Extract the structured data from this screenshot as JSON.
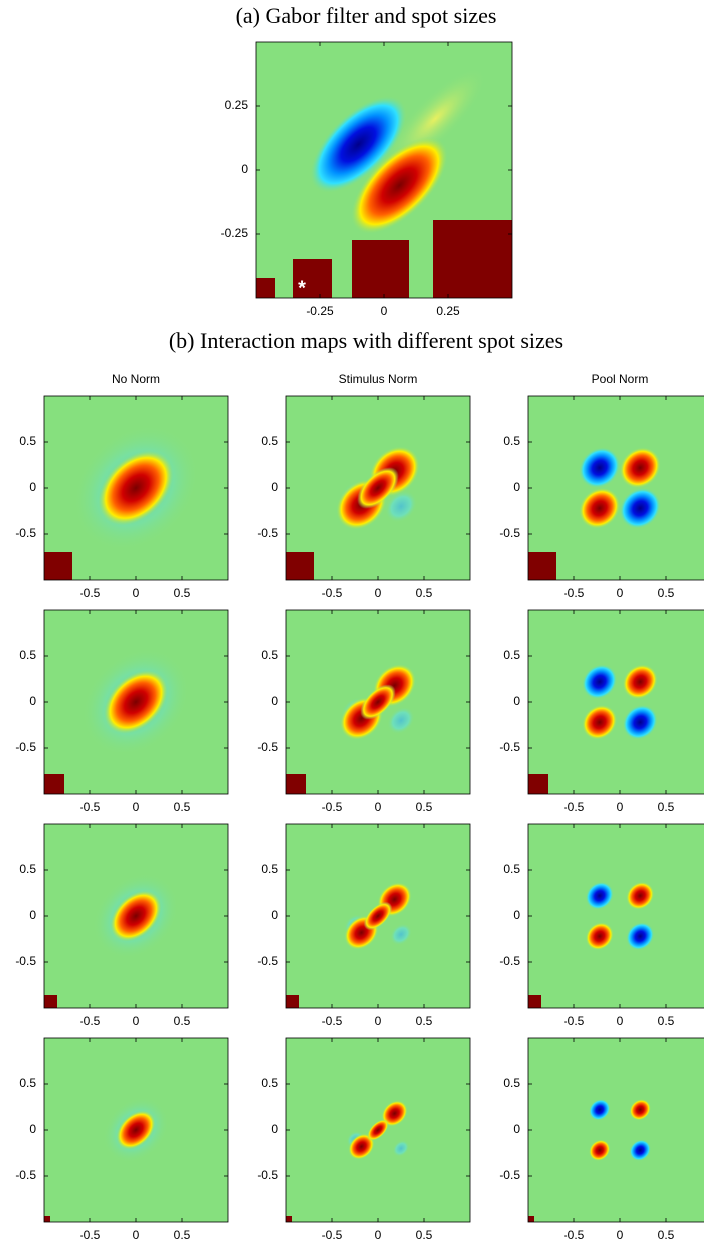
{
  "chart_data": [
    {
      "type": "heatmap",
      "title": "(a) Gabor filter and spot sizes",
      "xlim": [
        -0.5,
        0.5
      ],
      "ylim": [
        -0.5,
        0.5
      ],
      "xticks": [
        -0.25,
        0,
        0.25
      ],
      "yticks": [
        0.25,
        0,
        -0.25
      ],
      "marker": "*"
    },
    {
      "type": "heatmap",
      "title": "(b) Interaction maps with different spot sizes",
      "column_titles": [
        "No Norm",
        "Stimulus Norm",
        "Pool Norm"
      ],
      "xlim": [
        -1,
        1
      ],
      "ylim": [
        -1,
        1
      ],
      "xticks": [
        -0.5,
        0,
        0.5
      ],
      "yticks": [
        0.5,
        0,
        -0.5
      ]
    }
  ]
}
